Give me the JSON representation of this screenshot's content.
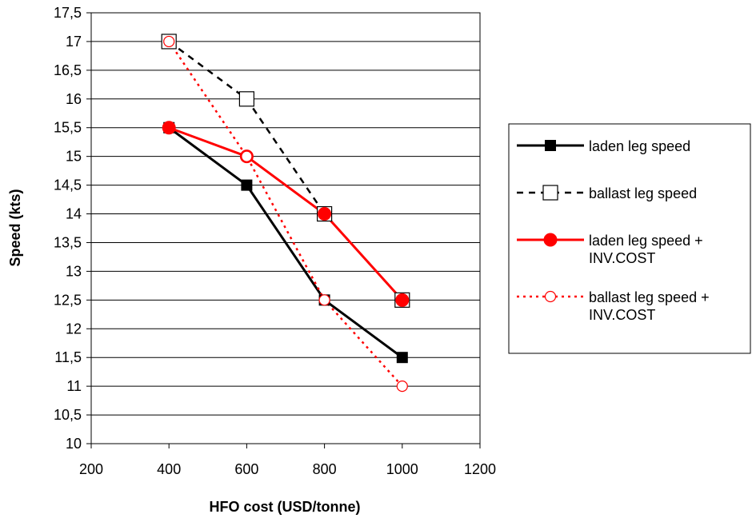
{
  "chart_data": {
    "type": "line",
    "xlabel": "HFO cost (USD/tonne)",
    "ylabel": "Speed (kts)",
    "xlim": [
      200,
      1200
    ],
    "ylim": [
      10,
      17.5
    ],
    "x_ticks": [
      "200",
      "400",
      "600",
      "800",
      "1000",
      "1200"
    ],
    "y_ticks": [
      "10",
      "10,5",
      "11",
      "11,5",
      "12",
      "12,5",
      "13",
      "13,5",
      "14",
      "14,5",
      "15",
      "15,5",
      "16",
      "16,5",
      "17",
      "17,5"
    ],
    "grid": "horizontal",
    "legend_position": "right",
    "series": [
      {
        "name": "laden leg speed",
        "name_lines": [
          "laden leg speed"
        ],
        "x": [
          400,
          600,
          800,
          1000
        ],
        "y": [
          15.5,
          14.5,
          12.5,
          11.5
        ],
        "color": "#000000",
        "line_style": "solid",
        "marker": "square-filled"
      },
      {
        "name": "ballast leg speed",
        "name_lines": [
          "ballast leg speed"
        ],
        "x": [
          400,
          600,
          800,
          1000
        ],
        "y": [
          17,
          16,
          14,
          12.5
        ],
        "color": "#000000",
        "line_style": "dashed",
        "marker": "square-open"
      },
      {
        "name": "laden leg speed + INV.COST",
        "name_lines": [
          "laden leg speed +",
          "INV.COST"
        ],
        "x": [
          400,
          600,
          800,
          1000
        ],
        "y": [
          15.5,
          15,
          14,
          12.5
        ],
        "color": "#ff0000",
        "line_style": "solid",
        "marker": "circle-filled"
      },
      {
        "name": "ballast leg speed + INV.COST",
        "name_lines": [
          "ballast leg speed +",
          "INV.COST"
        ],
        "x": [
          400,
          600,
          800,
          1000
        ],
        "y": [
          17,
          15,
          12.5,
          11
        ],
        "color": "#ff0000",
        "line_style": "dotted",
        "marker": "circle-open"
      }
    ]
  }
}
